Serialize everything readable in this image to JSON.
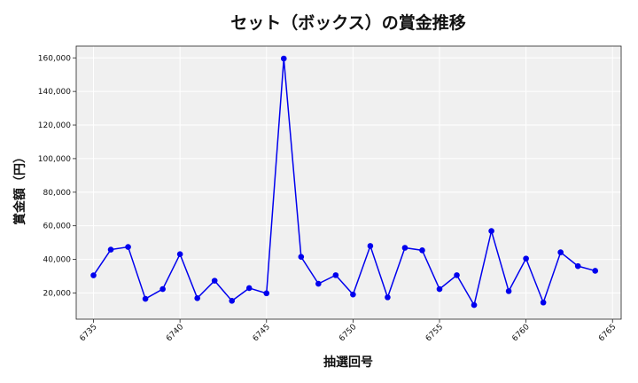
{
  "chart_data": {
    "type": "line",
    "title": "セット（ボックス）の賞金推移",
    "xlabel": "抽選回号",
    "ylabel": "賞金額（円）",
    "x": [
      6735,
      6736,
      6737,
      6738,
      6739,
      6740,
      6741,
      6742,
      6743,
      6744,
      6745,
      6746,
      6747,
      6748,
      6749,
      6750,
      6751,
      6752,
      6753,
      6754,
      6755,
      6756,
      6757,
      6758,
      6759,
      6760,
      6761,
      6762,
      6763,
      6764
    ],
    "series": [
      {
        "values": [
          30500,
          45800,
          47400,
          16500,
          22300,
          43100,
          16900,
          27300,
          15300,
          22900,
          19800,
          159600,
          41500,
          25500,
          30600,
          19100,
          48000,
          17400,
          46900,
          45400,
          22300,
          30600,
          12800,
          56900,
          21100,
          40500,
          14300,
          44200,
          36000,
          33200
        ]
      }
    ],
    "xlim": [
      6734,
      6765.5
    ],
    "ylim": [
      4400,
      167000
    ],
    "xticks": [
      6735,
      6740,
      6745,
      6750,
      6755,
      6760,
      6765
    ],
    "yticks": [
      20000,
      40000,
      60000,
      80000,
      100000,
      120000,
      140000,
      160000
    ],
    "grid": true,
    "colors": {
      "line": "#0000ee",
      "marker": "#0000ee",
      "plot_bg": "#f0f0f0",
      "grid": "#ffffff"
    }
  }
}
